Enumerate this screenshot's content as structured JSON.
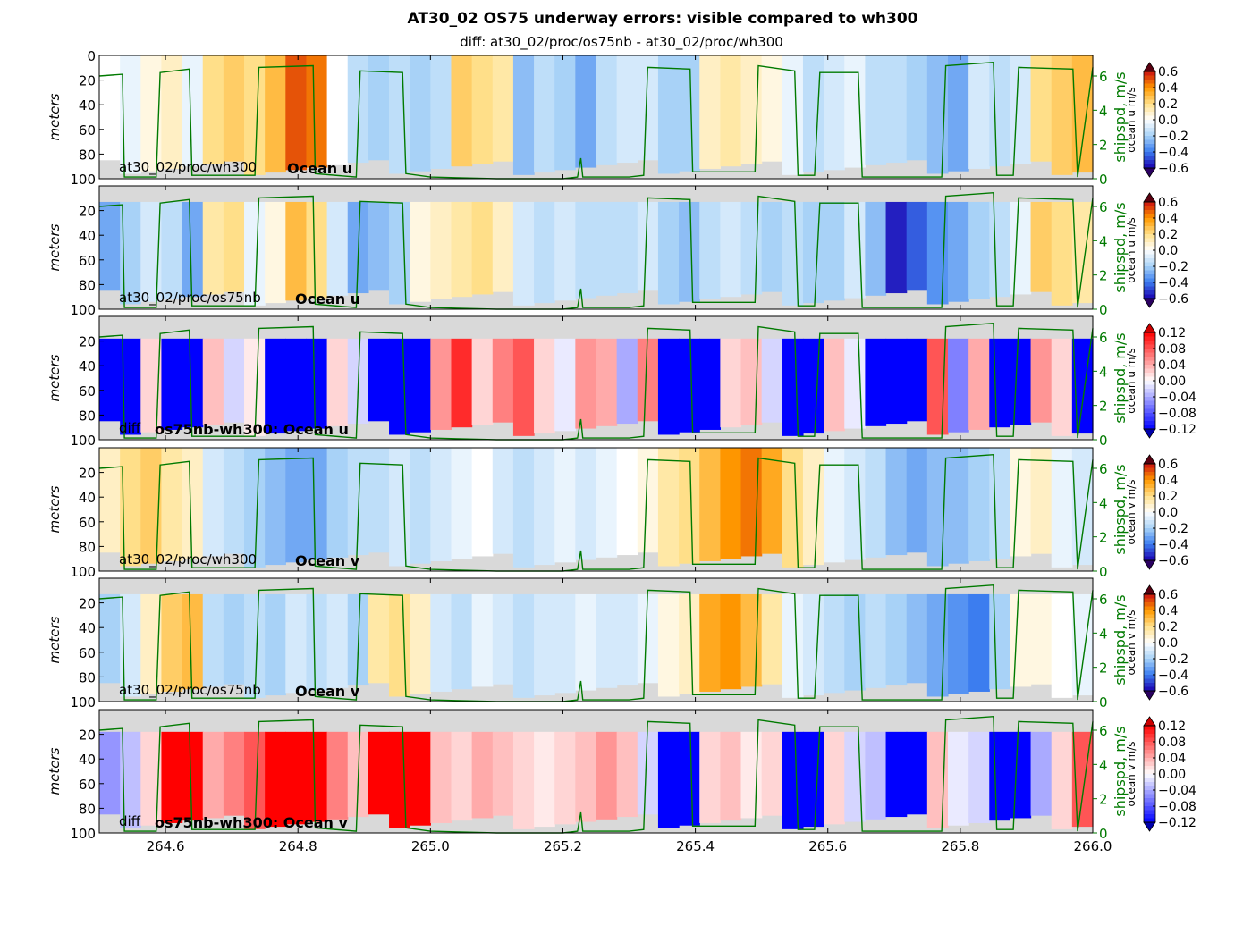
{
  "title": "AT30_02   OS75 underway errors: visible compared to wh300",
  "subtitle": "diff: at30_02/proc/os75nb - at30_02/proc/wh300",
  "colors": {
    "shipspd_line": "#007a00",
    "nodata": "#d9d9d9",
    "axis": "#000000"
  },
  "chart_data": [
    {
      "type": "heatmap",
      "label": "at30_02/proc/wh300",
      "name": "Ocean u",
      "ylabel": "meters",
      "ylim": [
        100,
        0
      ],
      "xlim": [
        264.5,
        266.0
      ],
      "yticks": [
        0,
        20,
        40,
        60,
        80,
        100
      ],
      "xtick_labels_shown": false,
      "right_ylabel": "shipspd, m/s",
      "right_yticks": [
        0,
        2,
        4,
        6
      ],
      "cbar_label": "ocean u m/s",
      "cbar_range": [
        -0.6,
        0.6
      ],
      "cbar_ticks": [
        "0.6",
        "0.4",
        "0.2",
        "0.0",
        "−0.2",
        "−0.4",
        "−0.6"
      ],
      "cbar_style": "hot",
      "top_depth": 0,
      "values": [
        0.0,
        -0.05,
        0.05,
        0.1,
        -0.05,
        0.2,
        0.25,
        0.2,
        0.3,
        0.5,
        0.45,
        0.0,
        -0.15,
        -0.2,
        -0.15,
        -0.2,
        -0.15,
        0.25,
        0.2,
        0.15,
        -0.25,
        -0.15,
        -0.2,
        -0.3,
        -0.15,
        -0.1,
        -0.1,
        -0.2,
        -0.2,
        0.1,
        0.15,
        0.1,
        0.05,
        -0.05,
        -0.15,
        -0.1,
        -0.05,
        -0.15,
        -0.15,
        -0.2,
        -0.25,
        -0.3,
        -0.1,
        -0.15,
        -0.1,
        0.2,
        0.25,
        0.3
      ]
    },
    {
      "type": "heatmap",
      "label": "at30_02/proc/os75nb",
      "name": "Ocean u",
      "ylabel": "meters",
      "ylim": [
        100,
        0
      ],
      "xlim": [
        264.5,
        266.0
      ],
      "yticks": [
        20,
        40,
        60,
        80,
        100
      ],
      "xtick_labels_shown": false,
      "right_ylabel": "shipspd, m/s",
      "right_yticks": [
        0,
        2,
        4,
        6
      ],
      "cbar_label": "ocean u m/s",
      "cbar_range": [
        -0.6,
        0.6
      ],
      "cbar_ticks": [
        "0.6",
        "0.4",
        "0.2",
        "0.0",
        "−0.2",
        "−0.4",
        "−0.6"
      ],
      "cbar_style": "hot",
      "top_depth": 13,
      "values": [
        -0.3,
        -0.2,
        -0.1,
        -0.15,
        -0.3,
        0.15,
        0.2,
        -0.05,
        0.05,
        0.3,
        0.2,
        -0.1,
        -0.3,
        -0.25,
        -0.2,
        0.05,
        0.1,
        0.15,
        0.2,
        0.1,
        -0.1,
        -0.15,
        -0.1,
        -0.15,
        -0.15,
        -0.15,
        -0.1,
        -0.2,
        -0.25,
        -0.15,
        -0.1,
        -0.15,
        -0.2,
        -0.15,
        -0.2,
        -0.2,
        -0.1,
        -0.25,
        -0.55,
        -0.45,
        -0.35,
        -0.3,
        -0.2,
        -0.15,
        -0.05,
        0.25,
        0.2,
        0.15
      ]
    },
    {
      "type": "heatmap",
      "label": "diff",
      "name": "os75nb-wh300: Ocean u",
      "ylabel": "meters",
      "ylim": [
        100,
        0
      ],
      "xlim": [
        264.5,
        266.0
      ],
      "yticks": [
        20,
        40,
        60,
        80,
        100
      ],
      "xtick_labels_shown": false,
      "right_ylabel": "shipspd, m/s",
      "right_yticks": [
        0,
        2,
        4,
        6
      ],
      "cbar_label": "ocean u m/s",
      "cbar_range": [
        -0.12,
        0.12
      ],
      "cbar_ticks": [
        "0.12",
        "0.08",
        "0.04",
        "0.00",
        "−0.04",
        "−0.08",
        "−0.12"
      ],
      "cbar_style": "bwr",
      "top_depth": 18,
      "values": [
        -0.12,
        -0.12,
        0.02,
        -0.12,
        -0.12,
        0.03,
        -0.02,
        0.01,
        -0.12,
        -0.12,
        -0.12,
        0.02,
        -0.02,
        -0.12,
        -0.12,
        -0.12,
        0.05,
        0.1,
        0.02,
        0.06,
        0.08,
        0.02,
        -0.01,
        0.05,
        0.04,
        -0.04,
        0.06,
        -0.12,
        -0.12,
        -0.12,
        0.02,
        0.03,
        -0.02,
        -0.12,
        -0.12,
        0.03,
        -0.01,
        -0.12,
        -0.12,
        -0.12,
        0.08,
        -0.06,
        0.04,
        -0.12,
        -0.12,
        0.05,
        0.02,
        -0.12
      ]
    },
    {
      "type": "heatmap",
      "label": "at30_02/proc/wh300",
      "name": "Ocean v",
      "ylabel": "meters",
      "ylim": [
        100,
        0
      ],
      "xlim": [
        264.5,
        266.0
      ],
      "yticks": [
        20,
        40,
        60,
        80,
        100
      ],
      "xtick_labels_shown": false,
      "right_ylabel": "shipspd, m/s",
      "right_yticks": [
        0,
        2,
        4,
        6
      ],
      "cbar_label": "ocean v m/s",
      "cbar_range": [
        -0.6,
        0.6
      ],
      "cbar_ticks": [
        "0.6",
        "0.4",
        "0.2",
        "0.0",
        "−0.2",
        "−0.4",
        "−0.6"
      ],
      "cbar_style": "hot",
      "top_depth": 0,
      "values": [
        0.1,
        0.2,
        0.25,
        0.15,
        0.1,
        -0.1,
        -0.15,
        -0.2,
        -0.25,
        -0.3,
        -0.3,
        -0.2,
        -0.15,
        -0.15,
        -0.1,
        -0.15,
        -0.1,
        -0.05,
        0.0,
        -0.1,
        -0.15,
        -0.1,
        -0.05,
        -0.1,
        -0.05,
        0.0,
        0.05,
        0.15,
        0.2,
        0.3,
        0.4,
        0.45,
        0.35,
        0.2,
        0.1,
        -0.05,
        -0.1,
        -0.15,
        -0.25,
        -0.3,
        -0.25,
        -0.25,
        -0.2,
        -0.15,
        0.05,
        0.1,
        -0.05,
        -0.1
      ]
    },
    {
      "type": "heatmap",
      "label": "at30_02/proc/os75nb",
      "name": "Ocean v",
      "ylabel": "meters",
      "ylim": [
        100,
        0
      ],
      "xlim": [
        264.5,
        266.0
      ],
      "yticks": [
        20,
        40,
        60,
        80,
        100
      ],
      "xtick_labels_shown": false,
      "right_ylabel": "shipspd, m/s",
      "right_yticks": [
        0,
        2,
        4,
        6
      ],
      "cbar_label": "ocean v m/s",
      "cbar_range": [
        -0.6,
        0.6
      ],
      "cbar_ticks": [
        "0.6",
        "0.4",
        "0.2",
        "0.0",
        "−0.2",
        "−0.4",
        "−0.6"
      ],
      "cbar_style": "hot",
      "top_depth": 13,
      "values": [
        -0.2,
        -0.1,
        0.1,
        0.25,
        0.3,
        -0.15,
        -0.2,
        -0.15,
        -0.2,
        -0.1,
        -0.15,
        -0.1,
        -0.2,
        0.15,
        0.2,
        0.1,
        -0.1,
        -0.15,
        -0.05,
        -0.1,
        -0.15,
        -0.1,
        -0.1,
        -0.05,
        -0.1,
        -0.1,
        -0.05,
        0.05,
        0.1,
        0.35,
        0.4,
        0.3,
        0.15,
        -0.05,
        -0.1,
        -0.15,
        -0.2,
        -0.15,
        -0.2,
        -0.25,
        -0.3,
        -0.35,
        -0.4,
        -0.2,
        0.05,
        0.05,
        0.0,
        -0.05
      ]
    },
    {
      "type": "heatmap",
      "label": "diff",
      "name": "os75nb-wh300: Ocean v",
      "ylabel": "meters",
      "ylim": [
        100,
        0
      ],
      "xlim": [
        264.5,
        266.0
      ],
      "yticks": [
        20,
        40,
        60,
        80,
        100
      ],
      "xtick_labels": [
        "264.6",
        "264.8",
        "265.0",
        "265.2",
        "265.4",
        "265.6",
        "265.8",
        "266.0"
      ],
      "xticks": [
        264.6,
        264.8,
        265.0,
        265.2,
        265.4,
        265.6,
        265.8,
        266.0
      ],
      "xtick_labels_shown": true,
      "right_ylabel": "shipspd, m/s",
      "right_yticks": [
        0,
        2,
        4,
        6
      ],
      "cbar_label": "ocean v m/s",
      "cbar_range": [
        -0.12,
        0.12
      ],
      "cbar_ticks": [
        "0.12",
        "0.08",
        "0.04",
        "0.00",
        "−0.04",
        "−0.08",
        "−0.12"
      ],
      "cbar_style": "bwr",
      "top_depth": 18,
      "values": [
        -0.05,
        -0.03,
        0.02,
        0.12,
        0.12,
        0.04,
        0.06,
        0.08,
        0.12,
        0.12,
        0.12,
        0.06,
        0.03,
        0.12,
        0.12,
        0.12,
        0.03,
        0.02,
        0.04,
        0.03,
        0.02,
        0.01,
        0.02,
        0.03,
        0.05,
        0.03,
        -0.02,
        -0.12,
        -0.12,
        0.02,
        0.03,
        0.01,
        0.02,
        -0.12,
        -0.12,
        0.02,
        -0.02,
        -0.03,
        -0.12,
        -0.12,
        0.03,
        -0.01,
        -0.02,
        -0.12,
        -0.12,
        -0.04,
        0.02,
        0.08
      ]
    }
  ],
  "shipspd": {
    "x": [
      264.5,
      264.535,
      264.538,
      264.586,
      264.592,
      264.636,
      264.64,
      264.735,
      264.741,
      264.823,
      264.826,
      264.888,
      264.894,
      264.958,
      264.963,
      265.0,
      265.1,
      265.2,
      265.222,
      265.227,
      265.23,
      265.3,
      265.322,
      265.328,
      265.392,
      265.396,
      265.49,
      265.495,
      265.55,
      265.555,
      265.58,
      265.588,
      265.646,
      265.652,
      265.772,
      265.778,
      265.85,
      265.855,
      265.88,
      265.888,
      265.97,
      265.977,
      266.0
    ],
    "y": [
      6.0,
      6.1,
      0.1,
      0.1,
      6.2,
      6.4,
      0.2,
      0.2,
      6.5,
      6.6,
      0.3,
      0.1,
      6.3,
      6.2,
      0.3,
      0.1,
      0.0,
      0.0,
      0.1,
      1.2,
      0.1,
      0.1,
      0.2,
      6.5,
      6.4,
      0.4,
      0.4,
      6.6,
      6.3,
      0.2,
      0.2,
      6.2,
      6.2,
      0.1,
      0.1,
      6.6,
      6.8,
      0.2,
      0.2,
      6.5,
      6.4,
      0.1,
      6.5
    ],
    "ylim": [
      0,
      7.2
    ]
  }
}
